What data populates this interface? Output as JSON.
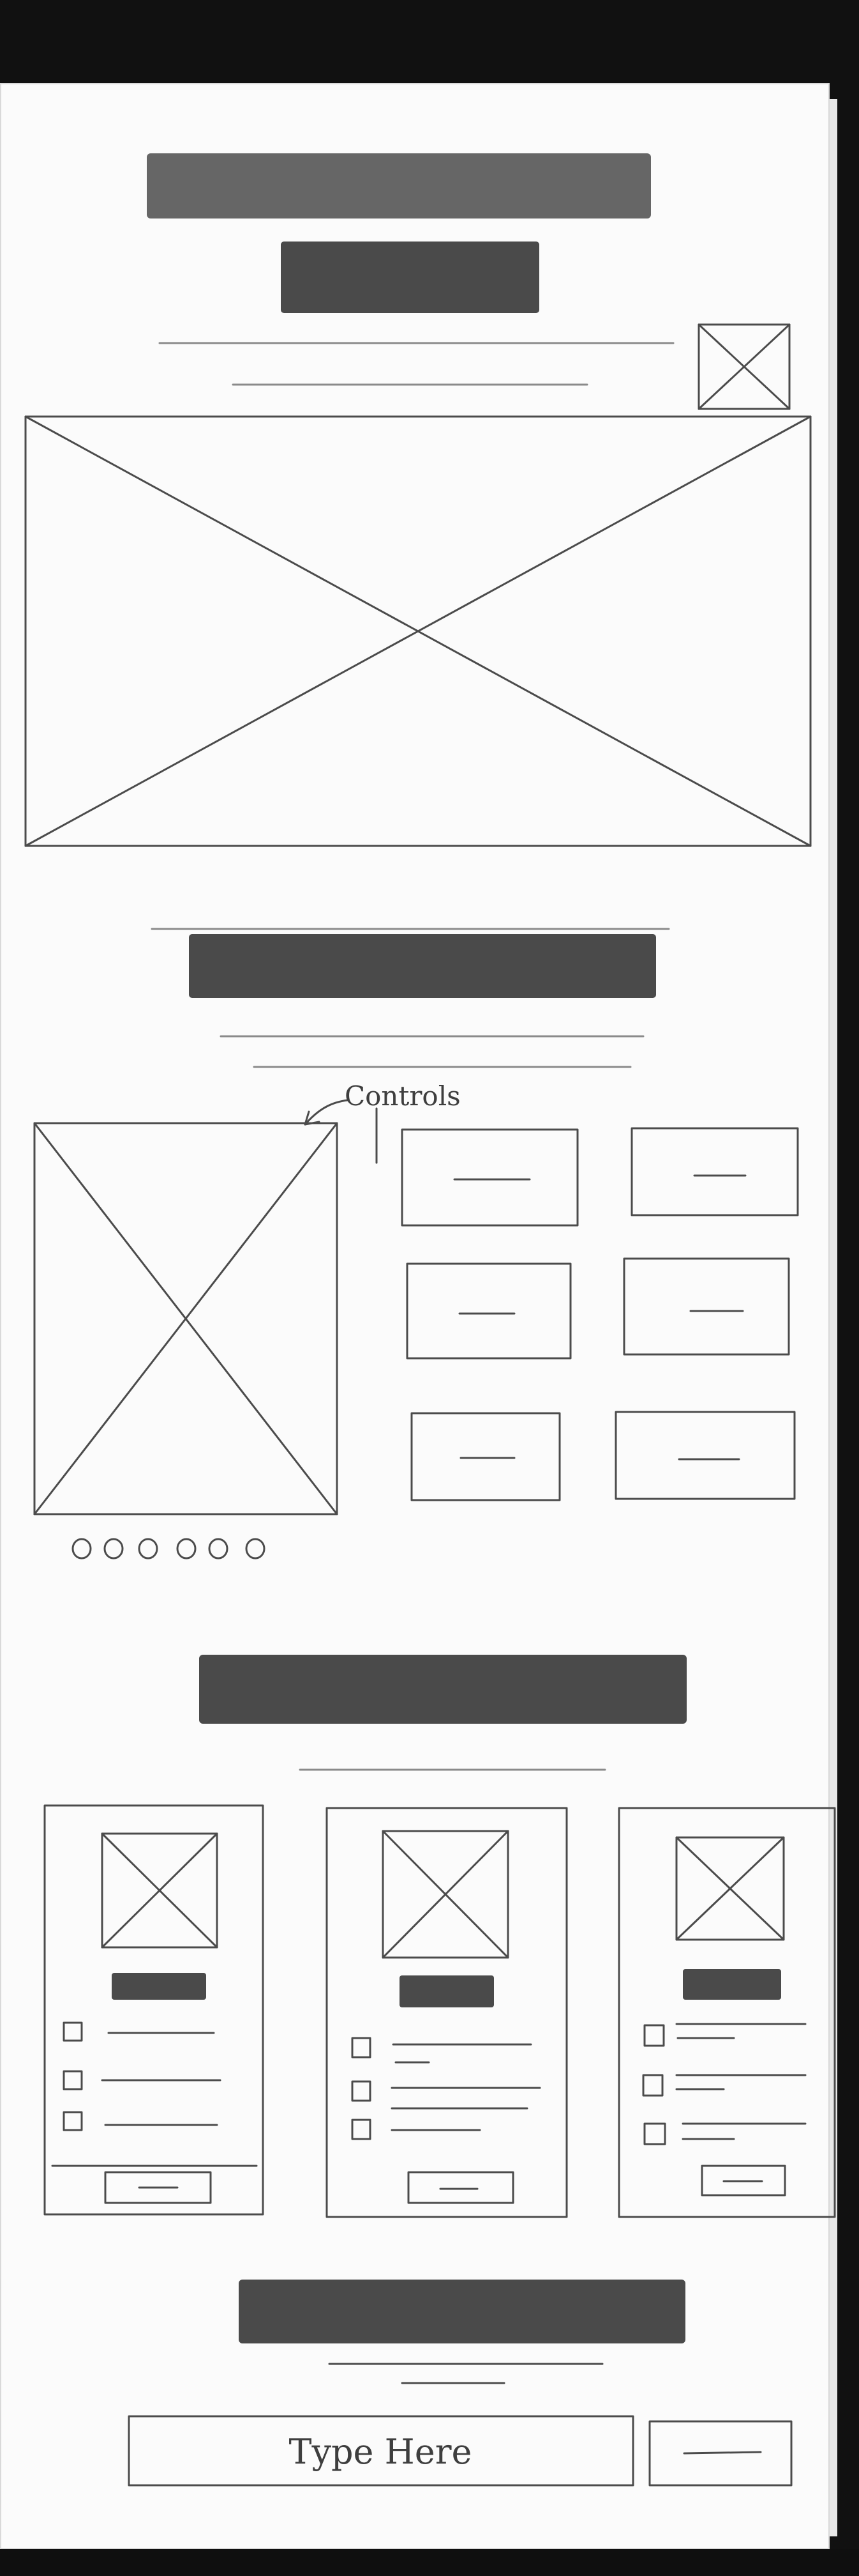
{
  "annotation": {
    "controls_label": "Controls"
  },
  "signup": {
    "input_text": "Type Here"
  },
  "colors": {
    "paper": "#fbfbfb",
    "pencil": "#4b4b4b",
    "background": "#111111"
  }
}
